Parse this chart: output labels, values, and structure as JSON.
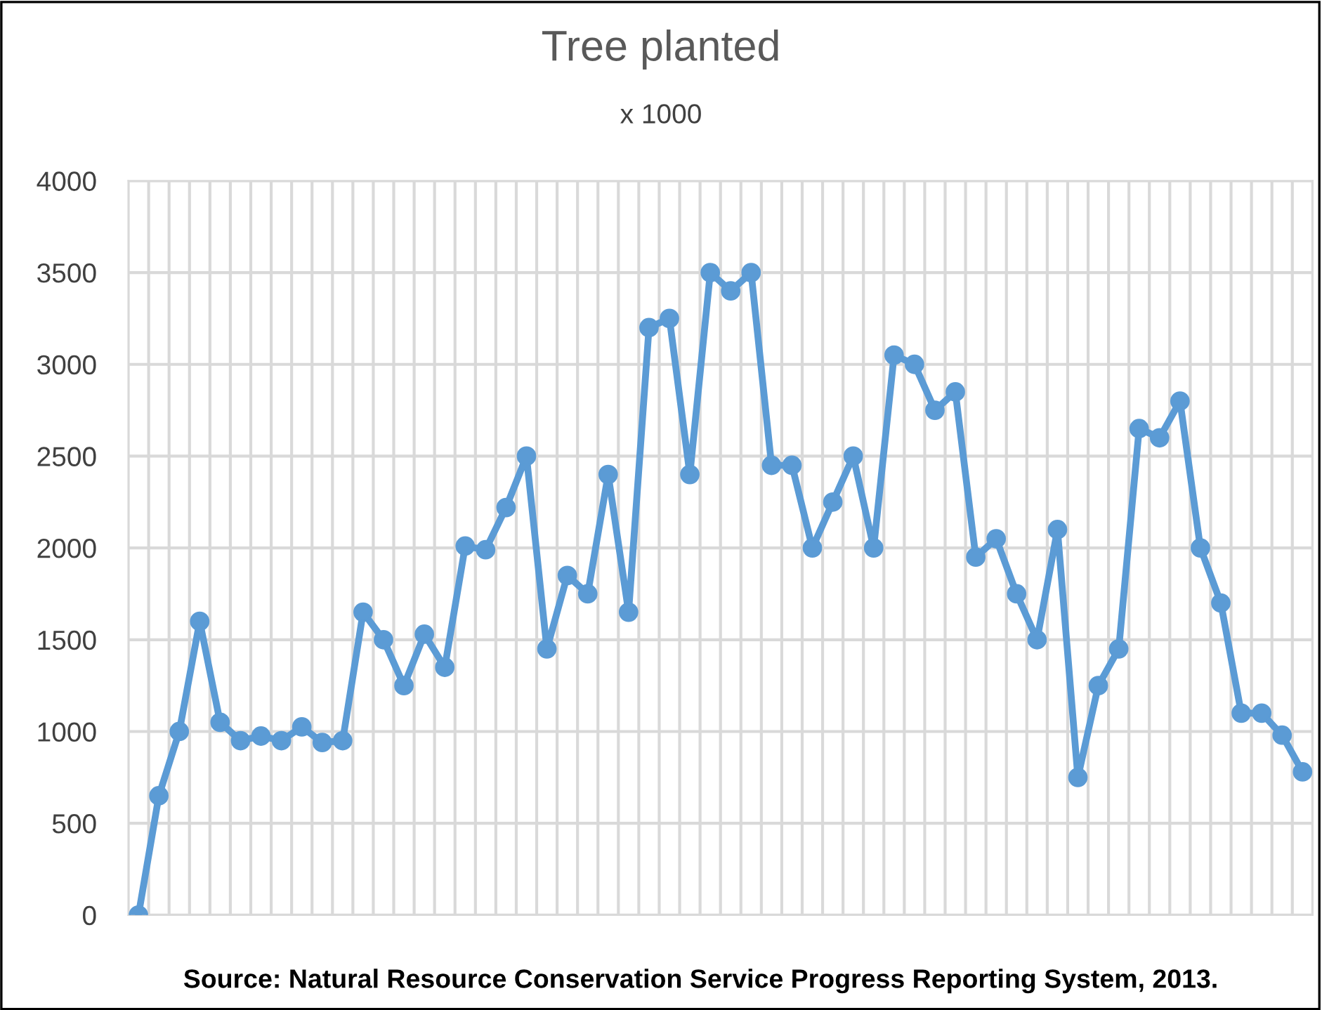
{
  "chart_data": {
    "type": "line",
    "title": "Tree planted",
    "subtitle": "x 1000",
    "categories": [
      null,
      null,
      null,
      null,
      null,
      null,
      null,
      null,
      null,
      null,
      null,
      null,
      null,
      null,
      null,
      null,
      null,
      null,
      null,
      null,
      null,
      null,
      null,
      null,
      null,
      null,
      null,
      null,
      null,
      null,
      null,
      null,
      null,
      null,
      null,
      null,
      null,
      null,
      null,
      null,
      null,
      null,
      null,
      null,
      null,
      null,
      null,
      null,
      null,
      null,
      null,
      null,
      null,
      null,
      null,
      null,
      null,
      null
    ],
    "series": [
      {
        "color": "#5b9bd5",
        "values": [
          0,
          650,
          1000,
          1600,
          1050,
          950,
          975,
          950,
          1025,
          940,
          950,
          1650,
          1500,
          1250,
          1530,
          1350,
          2010,
          1990,
          2220,
          2500,
          1450,
          1850,
          1750,
          2400,
          1650,
          3200,
          3250,
          2400,
          3500,
          3400,
          3500,
          2450,
          2450,
          2000,
          2250,
          2500,
          2000,
          3050,
          3000,
          2750,
          2850,
          1950,
          2050,
          1750,
          1500,
          2100,
          750,
          1250,
          1450,
          2650,
          2600,
          2800,
          2000,
          1700,
          1100,
          1100,
          980,
          780
        ]
      }
    ],
    "ylim": [
      0,
      4000
    ],
    "yticks": [
      0,
      500,
      1000,
      1500,
      2000,
      2500,
      3000,
      3500,
      4000
    ],
    "grid": true,
    "marker": "circle",
    "line_style": "solid",
    "tick_labels": "y",
    "annotations": [
      "Source: Natural Resource Conservation Service Progress Reporting System, 2013."
    ]
  }
}
